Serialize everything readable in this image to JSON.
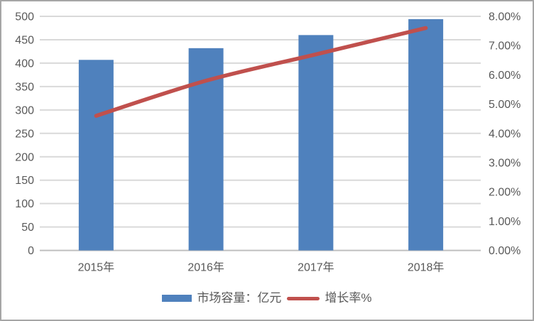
{
  "chart_data": {
    "type": "combo",
    "title": "",
    "categories": [
      "2015年",
      "2016年",
      "2017年",
      "2018年"
    ],
    "series": [
      {
        "name": "市场容量：亿元",
        "type": "bar",
        "axis": "left",
        "color": "#4F81BD",
        "values": [
          407,
          432,
          460,
          494
        ]
      },
      {
        "name": "增长率%",
        "type": "line",
        "axis": "right",
        "color": "#C0504D",
        "values": [
          4.6,
          5.8,
          6.7,
          7.6
        ]
      }
    ],
    "left_axis": {
      "min": 0,
      "max": 500,
      "step": 50,
      "tick_labels": [
        "0",
        "50",
        "100",
        "150",
        "200",
        "250",
        "300",
        "350",
        "400",
        "450",
        "500"
      ]
    },
    "right_axis": {
      "min": 0,
      "max": 8,
      "step": 1,
      "tick_labels": [
        "0.00%",
        "1.00%",
        "2.00%",
        "3.00%",
        "4.00%",
        "5.00%",
        "6.00%",
        "7.00%",
        "8.00%"
      ]
    },
    "legend": {
      "position": "bottom",
      "entries": [
        "市场容量：亿元",
        "增长率%"
      ]
    },
    "grid": true,
    "grid_color": "#D9D9D9",
    "axis_line_color": "#BFBFBF",
    "tick_label_color": "#595959"
  }
}
